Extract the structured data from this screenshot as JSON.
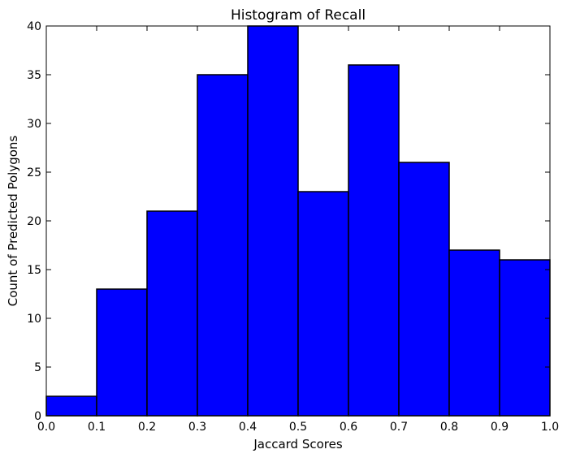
{
  "chart_data": {
    "type": "bar",
    "title": "Histogram of Recall",
    "xlabel": "Jaccard Scores",
    "ylabel": "Count of Predicted Polygons",
    "xlim": [
      0.0,
      1.0
    ],
    "ylim": [
      0,
      40
    ],
    "bins": [
      {
        "start": 0.0,
        "end": 0.1,
        "value": 2
      },
      {
        "start": 0.1,
        "end": 0.2,
        "value": 13
      },
      {
        "start": 0.2,
        "end": 0.3,
        "value": 21
      },
      {
        "start": 0.3,
        "end": 0.4,
        "value": 35
      },
      {
        "start": 0.4,
        "end": 0.5,
        "value": 40
      },
      {
        "start": 0.5,
        "end": 0.6,
        "value": 23
      },
      {
        "start": 0.6,
        "end": 0.7,
        "value": 36
      },
      {
        "start": 0.7,
        "end": 0.8,
        "value": 26
      },
      {
        "start": 0.8,
        "end": 0.9,
        "value": 17
      },
      {
        "start": 0.9,
        "end": 1.0,
        "value": 16
      }
    ],
    "xticks": [
      "0.0",
      "0.1",
      "0.2",
      "0.3",
      "0.4",
      "0.5",
      "0.6",
      "0.7",
      "0.8",
      "0.9",
      "1.0"
    ],
    "yticks": [
      "0",
      "5",
      "10",
      "15",
      "20",
      "25",
      "30",
      "35",
      "40"
    ],
    "grid": false,
    "colors": {
      "bar_fill": "#0000ff",
      "bar_edge": "#000000",
      "axes": "#000000",
      "background": "#ffffff"
    }
  }
}
